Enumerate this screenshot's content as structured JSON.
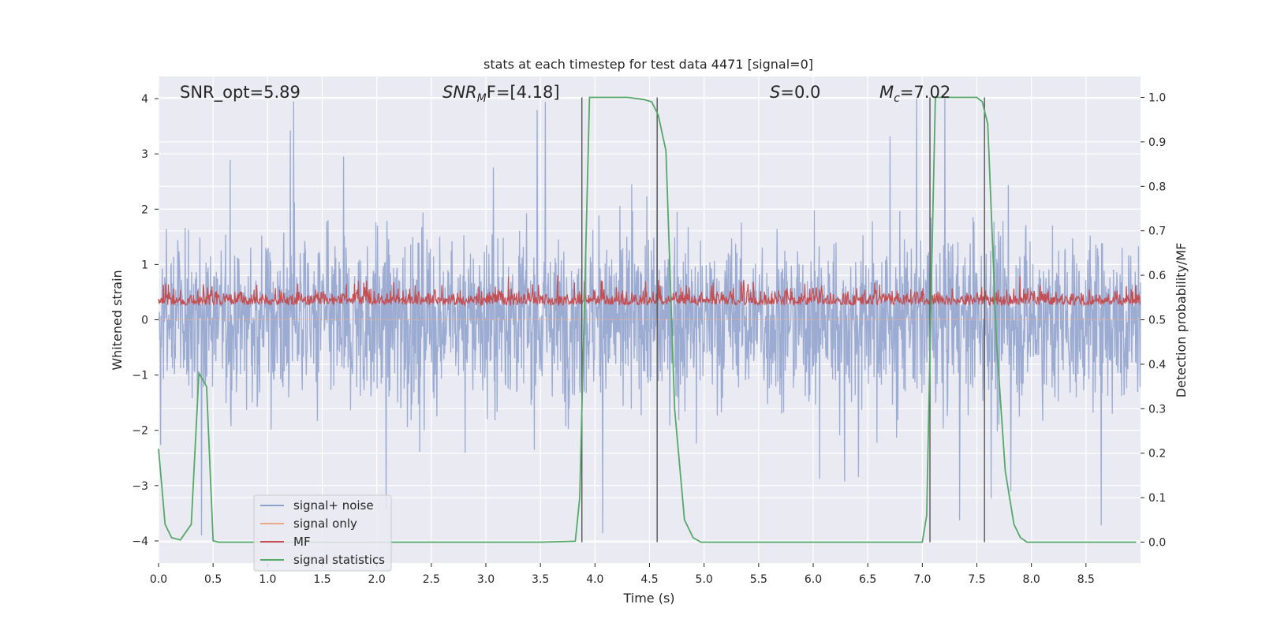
{
  "chart_data": {
    "type": "line",
    "title": "stats at each timestep for test data 4471 [signal=0]",
    "xlabel": "Time (s)",
    "ylabel_left": "Whitened strain",
    "ylabel_right": "Detection probability/MF",
    "xlim": [
      0.0,
      9.0
    ],
    "ylim_left": [
      -4.4,
      4.4
    ],
    "ylim_right": [
      -0.047,
      1.047
    ],
    "x_ticks": [
      "0.0",
      "0.5",
      "1.0",
      "1.5",
      "2.0",
      "2.5",
      "3.0",
      "3.5",
      "4.0",
      "4.5",
      "5.0",
      "5.5",
      "6.0",
      "6.5",
      "7.0",
      "7.5",
      "8.0",
      "8.5"
    ],
    "y_ticks_left": [
      "4",
      "3",
      "2",
      "1",
      "0",
      "−1",
      "−2",
      "−3",
      "−4"
    ],
    "y_ticks_right": [
      "1.0",
      "0.9",
      "0.8",
      "0.7",
      "0.6",
      "0.5",
      "0.4",
      "0.3",
      "0.2",
      "0.1",
      "0.0"
    ],
    "grid": true,
    "legend_position": "lower-left",
    "annotations": {
      "snr_opt": "SNR_opt=5.89",
      "snr_mf_base": "SNR",
      "snr_mf_sub": "M",
      "snr_mf_rest": "F=[4.18]",
      "s_label": "S",
      "s_value": "=0.0",
      "mc_label": "M",
      "mc_sub": "c",
      "mc_value": "=7.02"
    },
    "vertical_lines_x": [
      3.88,
      4.57,
      7.07,
      7.57
    ],
    "series": [
      {
        "name": "signal+ noise",
        "axis": "left",
        "color": "#8da0cb",
        "description_range": [
          -3.9,
          4.0
        ]
      },
      {
        "name": "signal only",
        "axis": "left",
        "color": "#e8a88a",
        "values_constant": 0
      },
      {
        "name": "MF",
        "axis": "right",
        "color": "#c44e52",
        "description_range": [
          0.5,
          0.6
        ]
      },
      {
        "name": "signal statistics",
        "axis": "right",
        "color": "#55a868",
        "x": [
          0.0,
          0.06,
          0.12,
          0.2,
          0.3,
          0.37,
          0.44,
          0.5,
          0.55,
          0.6,
          1.0,
          2.0,
          3.0,
          3.5,
          3.82,
          3.86,
          3.95,
          4.3,
          4.45,
          4.52,
          4.58,
          4.65,
          4.73,
          4.82,
          4.9,
          4.97,
          5.05,
          5.5,
          6.5,
          7.0,
          7.04,
          7.08,
          7.12,
          7.5,
          7.55,
          7.6,
          7.68,
          7.76,
          7.84,
          7.9,
          7.96,
          8.05,
          8.96
        ],
        "y": [
          0.21,
          0.04,
          0.01,
          0.005,
          0.04,
          0.38,
          0.35,
          0.003,
          0.0,
          0.0,
          0.0,
          0.0,
          0.0,
          0.0,
          0.002,
          0.1,
          1.0,
          1.0,
          0.995,
          0.99,
          0.96,
          0.88,
          0.3,
          0.05,
          0.01,
          0.0,
          0.0,
          0.0,
          0.0,
          0.0,
          0.06,
          0.55,
          1.0,
          1.0,
          0.99,
          0.94,
          0.45,
          0.16,
          0.04,
          0.01,
          0.0,
          0.0,
          0.0
        ]
      }
    ]
  }
}
